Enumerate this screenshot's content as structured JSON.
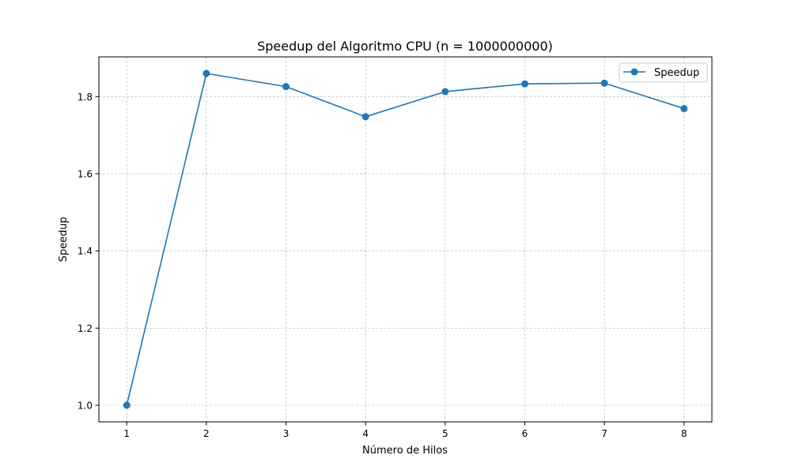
{
  "chart_data": {
    "type": "line",
    "title": "Speedup del Algoritmo CPU (n = 1000000000)",
    "xlabel": "Número de Hilos",
    "ylabel": "Speedup",
    "x": [
      1,
      2,
      3,
      4,
      5,
      6,
      7,
      8
    ],
    "x_tick_labels": [
      "1",
      "2",
      "3",
      "4",
      "5",
      "6",
      "7",
      "8"
    ],
    "y_ticks": [
      1.0,
      1.2,
      1.4,
      1.6,
      1.8
    ],
    "y_tick_labels": [
      "1.0",
      "1.2",
      "1.4",
      "1.6",
      "1.8"
    ],
    "xlim": [
      0.65,
      8.35
    ],
    "ylim": [
      0.957,
      1.903
    ],
    "grid": true,
    "legend_position": "top-right",
    "series": [
      {
        "name": "Speedup",
        "values": [
          1.0,
          1.86,
          1.826,
          1.748,
          1.813,
          1.833,
          1.835,
          1.769
        ],
        "color": "#1f77b4",
        "marker": "circle"
      }
    ]
  }
}
